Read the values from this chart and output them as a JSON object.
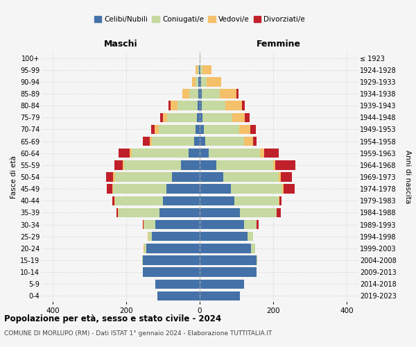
{
  "age_groups": [
    "0-4",
    "5-9",
    "10-14",
    "15-19",
    "20-24",
    "25-29",
    "30-34",
    "35-39",
    "40-44",
    "45-49",
    "50-54",
    "55-59",
    "60-64",
    "65-69",
    "70-74",
    "75-79",
    "80-84",
    "85-89",
    "90-94",
    "95-99",
    "100+"
  ],
  "birth_years": [
    "2019-2023",
    "2014-2018",
    "2009-2013",
    "2004-2008",
    "1999-2003",
    "1994-1998",
    "1989-1993",
    "1984-1988",
    "1979-1983",
    "1974-1978",
    "1969-1973",
    "1964-1968",
    "1959-1963",
    "1954-1958",
    "1949-1953",
    "1944-1948",
    "1939-1943",
    "1934-1938",
    "1929-1933",
    "1924-1928",
    "≤ 1923"
  ],
  "colors": {
    "celibi": "#4472a8",
    "coniugati": "#c5d9a0",
    "vedovi": "#f5c06a",
    "divorziati": "#c0202a"
  },
  "males": {
    "celibi": [
      115,
      120,
      155,
      155,
      145,
      130,
      120,
      110,
      100,
      90,
      75,
      50,
      30,
      15,
      12,
      8,
      5,
      4,
      3,
      2,
      0
    ],
    "coniugati": [
      0,
      0,
      0,
      2,
      5,
      10,
      30,
      110,
      130,
      145,
      155,
      155,
      155,
      115,
      100,
      80,
      55,
      25,
      8,
      4,
      0
    ],
    "vedovi": [
      0,
      0,
      0,
      0,
      2,
      2,
      2,
      2,
      2,
      3,
      5,
      5,
      5,
      5,
      10,
      12,
      20,
      18,
      10,
      5,
      0
    ],
    "divorziati": [
      0,
      0,
      0,
      0,
      0,
      0,
      2,
      5,
      5,
      15,
      20,
      22,
      30,
      20,
      10,
      8,
      5,
      0,
      0,
      0,
      0
    ]
  },
  "females": {
    "celibi": [
      110,
      120,
      155,
      155,
      140,
      130,
      120,
      110,
      95,
      85,
      65,
      45,
      25,
      15,
      12,
      8,
      5,
      5,
      3,
      2,
      0
    ],
    "coniugati": [
      0,
      0,
      0,
      2,
      10,
      15,
      35,
      100,
      120,
      140,
      150,
      155,
      140,
      105,
      95,
      80,
      65,
      50,
      15,
      5,
      0
    ],
    "vedovi": [
      0,
      0,
      0,
      0,
      0,
      0,
      0,
      0,
      2,
      3,
      5,
      5,
      10,
      25,
      30,
      35,
      45,
      45,
      40,
      25,
      2
    ],
    "divorziati": [
      0,
      0,
      0,
      0,
      0,
      0,
      5,
      10,
      5,
      30,
      30,
      55,
      40,
      10,
      15,
      12,
      8,
      5,
      0,
      0,
      0
    ]
  },
  "xlim": 430,
  "title": "Popolazione per età, sesso e stato civile - 2024",
  "subtitle": "COMUNE DI MORLUPO (RM) - Dati ISTAT 1° gennaio 2024 - Elaborazione TUTTITALIA.IT",
  "xlabel_left": "Maschi",
  "xlabel_right": "Femmine",
  "ylabel_left": "Fasce di età",
  "ylabel_right": "Anni di nascita",
  "bg_color": "#f5f5f5",
  "grid_color": "#cccccc"
}
